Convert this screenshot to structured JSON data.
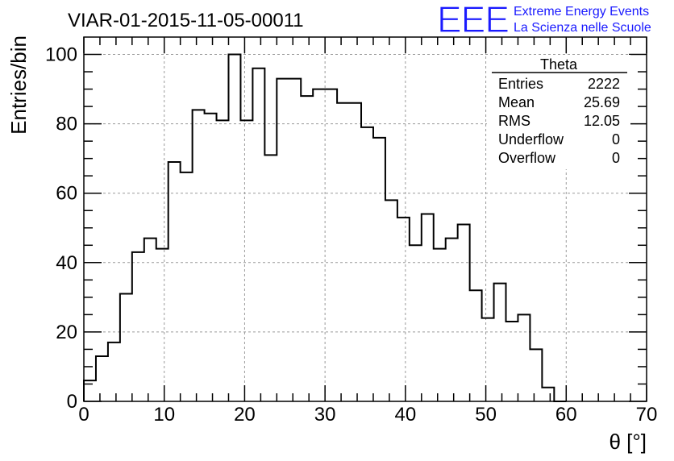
{
  "chart_data": {
    "type": "histogram",
    "title": "VIAR-01-2015-11-05-00011",
    "xlabel": "θ [°]",
    "ylabel": "Entries/bin",
    "xlim": [
      0,
      70
    ],
    "ylim": [
      0,
      105
    ],
    "grid": true,
    "xticks": [
      0,
      10,
      20,
      30,
      40,
      50,
      60,
      70
    ],
    "yticks": [
      0,
      20,
      40,
      60,
      80,
      100
    ],
    "bin_width": 1.5,
    "x_start": 0,
    "values": [
      6,
      13,
      17,
      31,
      43,
      47,
      44,
      69,
      66,
      84,
      83,
      81,
      100,
      81,
      96,
      71,
      93,
      93,
      88,
      90,
      90,
      86,
      86,
      79,
      76,
      58,
      53,
      45,
      54,
      44,
      47,
      51,
      32,
      24,
      34,
      23,
      25,
      15,
      4,
      0
    ],
    "stats": {
      "name": "Theta",
      "rows": [
        {
          "label": "Entries",
          "value": "2222"
        },
        {
          "label": "Mean",
          "value": "25.69"
        },
        {
          "label": "RMS",
          "value": "12.05"
        },
        {
          "label": "Underflow",
          "value": "0"
        },
        {
          "label": "Overflow",
          "value": "0"
        }
      ]
    }
  },
  "logo": {
    "text": "EEE",
    "line1": "Extreme Energy Events",
    "line2": "La Scienza nelle Scuole",
    "color": "#1a1aff"
  }
}
